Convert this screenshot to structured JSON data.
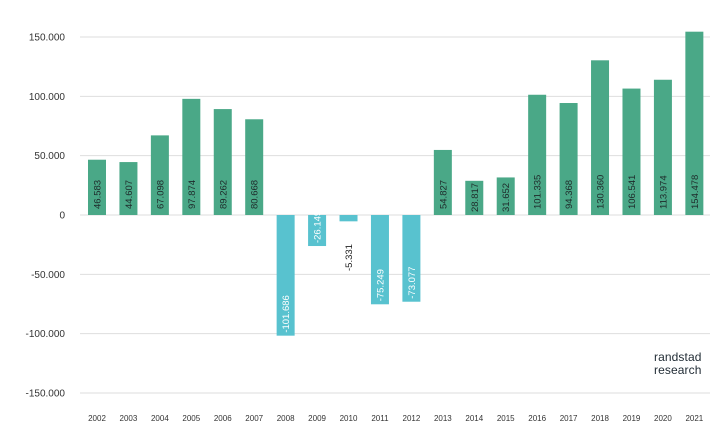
{
  "chart_data": {
    "type": "bar",
    "title": "",
    "xlabel": "",
    "ylabel": "",
    "ylim": [
      -150000,
      150000
    ],
    "yticks": [
      150000,
      100000,
      50000,
      0,
      -50000,
      -100000,
      -150000
    ],
    "ytick_labels": [
      "150.000",
      "100.000",
      "50.000",
      "0",
      "-50.000",
      "-100.000",
      "-150.000"
    ],
    "grid": true,
    "categories": [
      "2002",
      "2003",
      "2004",
      "2005",
      "2006",
      "2007",
      "2008",
      "2009",
      "2010",
      "2011",
      "2012",
      "2013",
      "2014",
      "2015",
      "2016",
      "2017",
      "2018",
      "2019",
      "2020",
      "2021"
    ],
    "values": [
      46583,
      44607,
      67098,
      97874,
      89262,
      80668,
      -101686,
      -26149,
      -5331,
      -75249,
      -73077,
      54827,
      28817,
      31652,
      101335,
      94368,
      130360,
      106541,
      113974,
      154478
    ],
    "value_labels": [
      "46.583",
      "44.607",
      "67.098",
      "97.874",
      "89.262",
      "80.668",
      "-101.686",
      "-26.149",
      "-5.331",
      "-75.249",
      "-73.077",
      "54.827",
      "28.817",
      "31.652",
      "101.335",
      "94.368",
      "130.360",
      "106.541",
      "113.974",
      "154.478"
    ],
    "colors": {
      "positive": "#4aa887",
      "negative": "#58c2cf",
      "grid": "#dedede",
      "text": "#333333"
    }
  },
  "branding": {
    "line1": "randstad",
    "line2": "research"
  }
}
